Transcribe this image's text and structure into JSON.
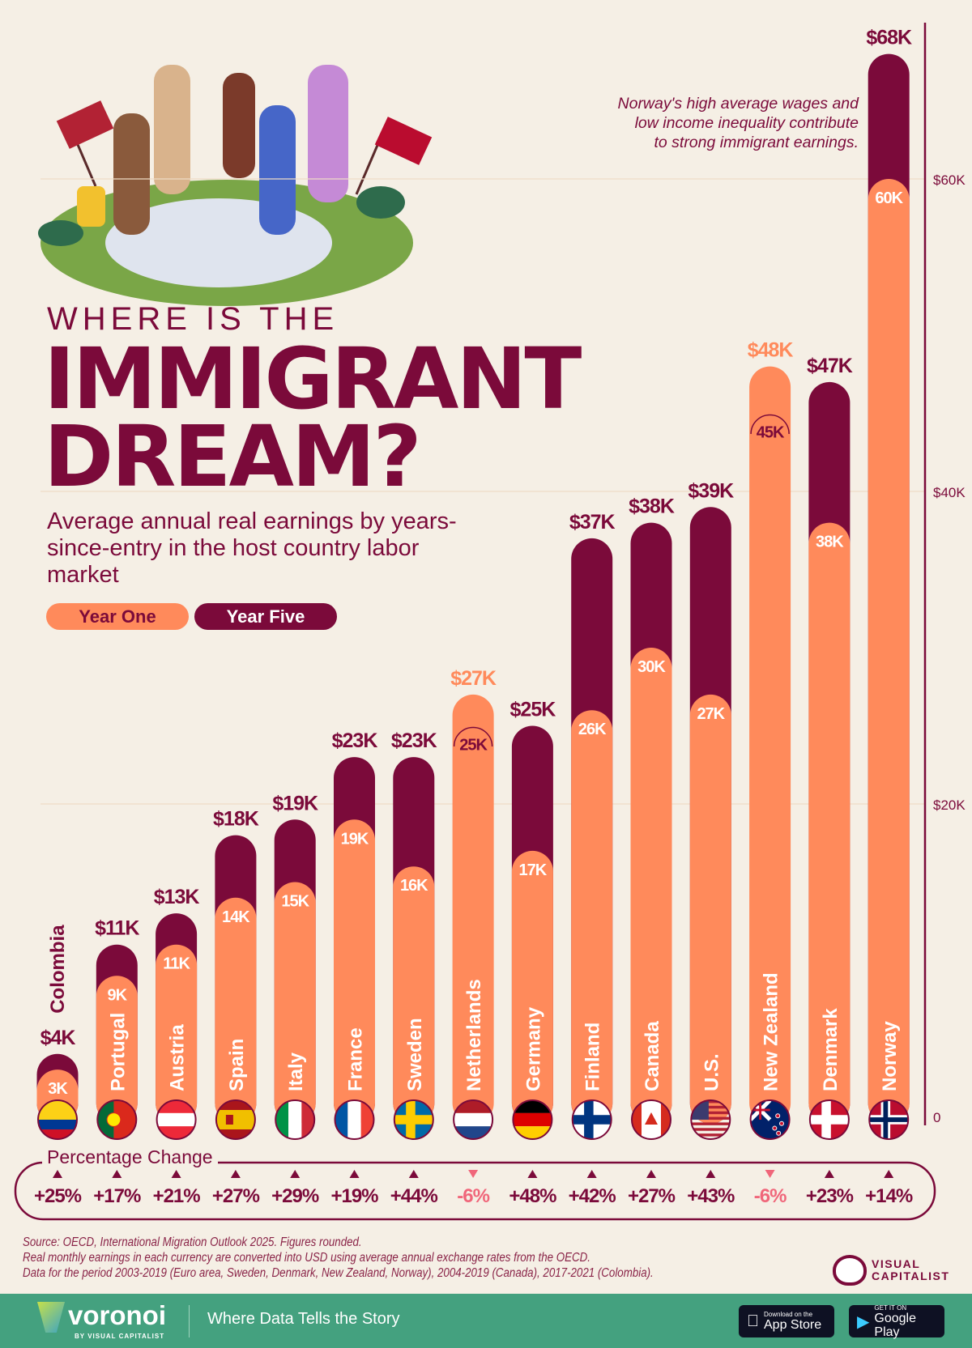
{
  "header": {
    "kicker": "WHERE IS THE",
    "title_line1": "IMMIGRANT",
    "title_line2": "DREAM?",
    "subtitle": "Average annual real earnings by years-since-entry in the host country labor market"
  },
  "legend": {
    "year_one": "Year One",
    "year_five": "Year Five"
  },
  "annotation": {
    "line1": "Norway's high average wages and",
    "line2": "low income inequality contribute",
    "line3": "to strong immigrant earnings."
  },
  "colors": {
    "year_one": "#ff8a5b",
    "year_five": "#7b0a3a",
    "background": "#f5efe5",
    "negative": "#f0667a",
    "footer": "#44a17f"
  },
  "chart_data": {
    "type": "bar",
    "title": "Where is the Immigrant Dream?",
    "categories": [
      "Colombia",
      "Portugal",
      "Austria",
      "Spain",
      "Italy",
      "France",
      "Sweden",
      "Netherlands",
      "Germany",
      "Finland",
      "Canada",
      "U.S.",
      "New Zealand",
      "Denmark",
      "Norway"
    ],
    "series": [
      {
        "name": "Year One",
        "values": [
          3,
          9,
          11,
          14,
          15,
          19,
          16,
          27,
          17,
          26,
          30,
          27,
          48,
          38,
          60
        ]
      },
      {
        "name": "Year Five",
        "values": [
          4,
          11,
          13,
          18,
          19,
          23,
          23,
          25,
          25,
          37,
          38,
          39,
          45,
          47,
          68
        ]
      }
    ],
    "unit": "thousand USD",
    "ylim": [
      0,
      70
    ],
    "yticks": [
      "0",
      "$20K",
      "$40K",
      "$60K"
    ],
    "grid": true,
    "percentage_change_label": "Percentage Change",
    "percentage_change": [
      "+25%",
      "+17%",
      "+21%",
      "+27%",
      "+29%",
      "+19%",
      "+44%",
      "-6%",
      "+48%",
      "+42%",
      "+27%",
      "+43%",
      "-6%",
      "+23%",
      "+14%"
    ],
    "flags": [
      "colombia-flag",
      "portugal-flag",
      "austria-flag",
      "spain-flag",
      "italy-flag",
      "france-flag",
      "sweden-flag",
      "netherlands-flag",
      "germany-flag",
      "finland-flag",
      "canada-flag",
      "us-flag",
      "new-zealand-flag",
      "denmark-flag",
      "norway-flag"
    ]
  },
  "source": {
    "line1": "Source: OECD, International Migration Outlook 2025. Figures rounded.",
    "line2": "Real monthly earnings in each currency are converted into USD using average annual exchange rates from the OECD.",
    "line3": "Data for the period 2003-2019 (Euro area, Sweden, Denmark, New Zealand, Norway), 2004-2019 (Canada), 2017-2021 (Colombia)."
  },
  "brand": {
    "vc_line1": "VISUAL",
    "vc_line2": "CAPITALIST"
  },
  "footer": {
    "brand": "voronoi",
    "brand_by": "BY VISUAL CAPITALIST",
    "tagline": "Where Data Tells the Story",
    "app_store_small": "Download on the",
    "app_store_big": "App Store",
    "google_small": "GET IT ON",
    "google_big": "Google Play"
  }
}
